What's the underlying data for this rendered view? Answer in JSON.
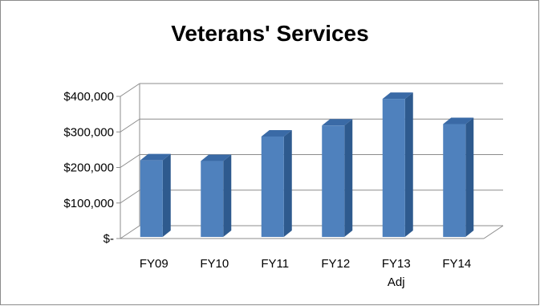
{
  "chart_data": {
    "type": "bar",
    "title": "Veterans' Services",
    "xlabel": "",
    "ylabel": "",
    "categories": [
      "FY09",
      "FY10",
      "FY11",
      "FY12",
      "FY13 Adj",
      "FY14"
    ],
    "values": [
      220000,
      218000,
      287000,
      318000,
      393000,
      322000
    ],
    "ylim": [
      0,
      400000
    ],
    "y_ticks": [
      0,
      100000,
      200000,
      300000,
      400000
    ],
    "y_tick_labels": [
      "$-",
      "$100,000",
      "$200,000",
      "$300,000",
      "$400,000"
    ],
    "grid": true,
    "legend": "none",
    "style": "3d-column",
    "colors": {
      "bar_front": "#4f81bd",
      "bar_side": "#2e5a8e",
      "bar_top": "#3a6aa6",
      "grid": "#8c8c8c",
      "border": "#8c8c8c"
    }
  }
}
